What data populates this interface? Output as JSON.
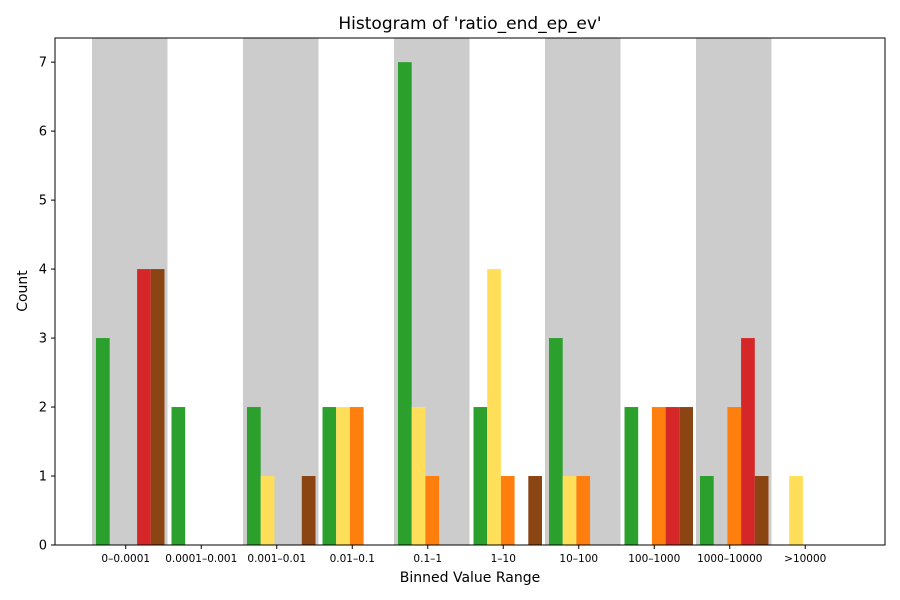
{
  "chart_data": {
    "type": "bar",
    "title": "Histogram of 'ratio_end_ep_ev'",
    "xlabel": "Binned Value Range",
    "ylabel": "Count",
    "ylim": [
      0,
      7.35
    ],
    "yticks": [
      0,
      1,
      2,
      3,
      4,
      5,
      6,
      7
    ],
    "grid": false,
    "categories": [
      "0–0.0001",
      "0.0001–0.001",
      "0.001–0.01",
      "0.01–0.1",
      "0.1–1",
      "1–10",
      "10–100",
      "100–1000",
      "1000–10000",
      ">10000"
    ],
    "series_colors": [
      "#2ca02c",
      "#ffdf5a",
      "#ff7f0e",
      "#d62728",
      "#8b4513"
    ],
    "shaded_band_color": "#cccccc",
    "series": [
      {
        "values": [
          3,
          2,
          2,
          2,
          7,
          2,
          3,
          2,
          1,
          0
        ]
      },
      {
        "values": [
          0,
          0,
          1,
          2,
          2,
          4,
          1,
          0,
          0,
          1
        ]
      },
      {
        "values": [
          0,
          0,
          0,
          2,
          1,
          1,
          1,
          2,
          2,
          0
        ]
      },
      {
        "values": [
          4,
          0,
          0,
          0,
          0,
          0,
          0,
          2,
          3,
          0
        ]
      },
      {
        "values": [
          4,
          0,
          1,
          0,
          0,
          1,
          0,
          2,
          1,
          0
        ]
      }
    ]
  }
}
